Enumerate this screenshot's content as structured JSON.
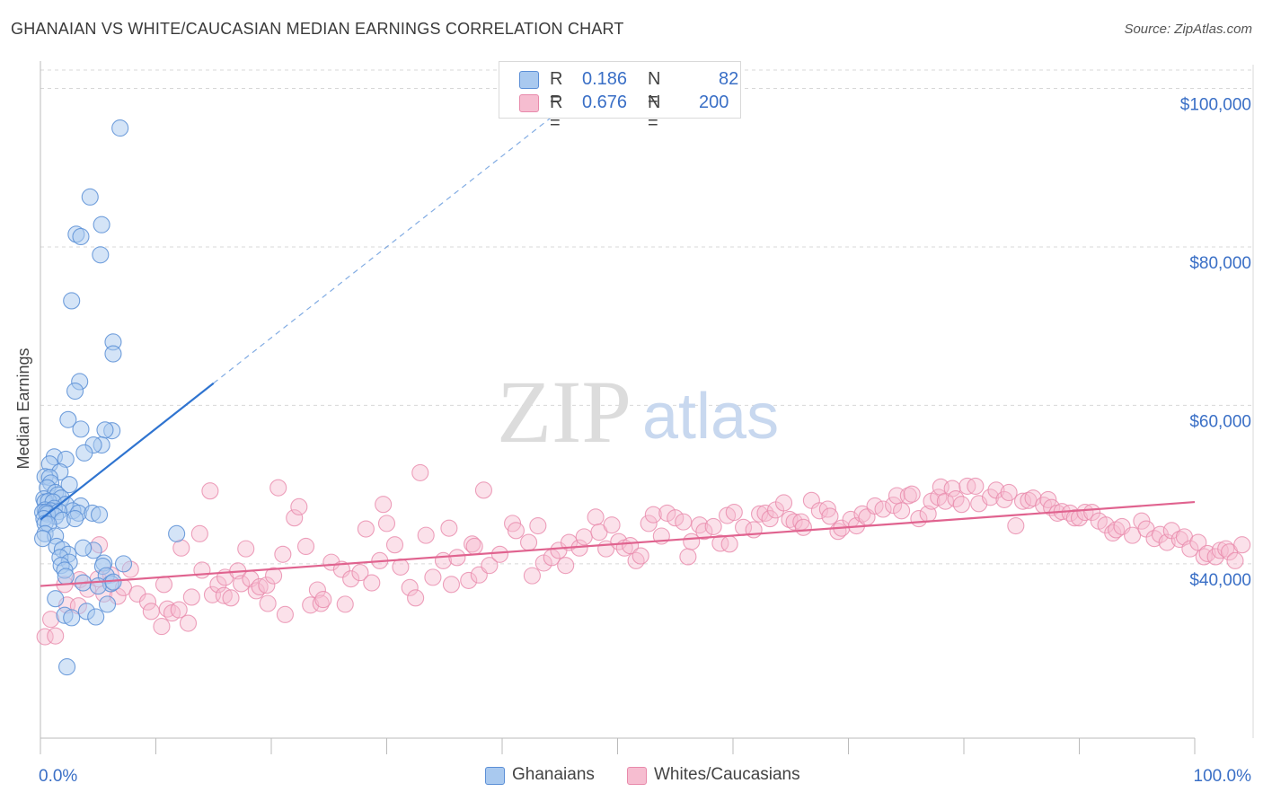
{
  "header": {
    "title": "GHANAIAN VS WHITE/CAUCASIAN MEDIAN EARNINGS CORRELATION CHART",
    "source": "Source: ZipAtlas.com"
  },
  "watermark": {
    "zip": "ZIP",
    "atlas": "atlas"
  },
  "legend": {
    "series1": {
      "r_label": "R =",
      "r_value": "0.186",
      "n_label": "N =",
      "n_value": "82"
    },
    "series2": {
      "r_label": "R =",
      "r_value": "0.676",
      "n_label": "N =",
      "n_value": "200"
    }
  },
  "colors": {
    "blue_fill": "#a9c9ef",
    "blue_stroke": "#5b8fd6",
    "blue_line": "#2f74d0",
    "pink_fill": "#f6bdd0",
    "pink_stroke": "#e88aab",
    "pink_line": "#e0638f",
    "tick_label": "#3a6fc6",
    "grid": "#d8d8d8"
  },
  "chart_data": {
    "type": "scatter",
    "title": "GHANAIAN VS WHITE/CAUCASIAN MEDIAN EARNINGS CORRELATION CHART",
    "xlabel": "",
    "ylabel": "Median Earnings",
    "xlim": [
      0,
      100
    ],
    "ylim": [
      18000,
      103000
    ],
    "x_tick_labels": [
      "0.0%",
      "100.0%"
    ],
    "y_ticks": [
      40000,
      60000,
      80000,
      100000
    ],
    "y_tick_labels": [
      "$40,000",
      "$60,000",
      "$80,000",
      "$100,000"
    ],
    "grid": true,
    "legend_position": "top-center",
    "series": [
      {
        "name": "Ghanaians",
        "r": 0.186,
        "n": 82,
        "trend": {
          "x0": 0,
          "y0": 45600,
          "x1": 15,
          "y1": 62800,
          "dashed_to_x": 45,
          "dashed_to_y": 97200
        },
        "points": [
          [
            6.9,
            95000
          ],
          [
            4.3,
            86300
          ],
          [
            5.3,
            82800
          ],
          [
            3.1,
            81600
          ],
          [
            3.5,
            81300
          ],
          [
            5.2,
            79000
          ],
          [
            2.7,
            73200
          ],
          [
            6.3,
            68000
          ],
          [
            6.3,
            66500
          ],
          [
            3.4,
            63000
          ],
          [
            3.0,
            61800
          ],
          [
            2.4,
            58200
          ],
          [
            3.5,
            57000
          ],
          [
            6.2,
            56800
          ],
          [
            5.6,
            56900
          ],
          [
            5.3,
            55000
          ],
          [
            4.6,
            55000
          ],
          [
            3.8,
            54000
          ],
          [
            1.2,
            53500
          ],
          [
            2.2,
            53200
          ],
          [
            0.8,
            52600
          ],
          [
            1.7,
            51600
          ],
          [
            0.4,
            51000
          ],
          [
            0.8,
            50900
          ],
          [
            0.9,
            50200
          ],
          [
            2.5,
            50000
          ],
          [
            0.6,
            49600
          ],
          [
            1.3,
            49000
          ],
          [
            1.5,
            48700
          ],
          [
            1.8,
            48300
          ],
          [
            0.3,
            48200
          ],
          [
            0.4,
            47800
          ],
          [
            0.7,
            47900
          ],
          [
            1.1,
            47800
          ],
          [
            2.2,
            47500
          ],
          [
            3.5,
            47300
          ],
          [
            1.2,
            47000
          ],
          [
            0.4,
            46800
          ],
          [
            0.9,
            46700
          ],
          [
            0.2,
            46500
          ],
          [
            0.5,
            46500
          ],
          [
            2.8,
            46700
          ],
          [
            1.6,
            46600
          ],
          [
            3.3,
            46400
          ],
          [
            0.6,
            46300
          ],
          [
            4.5,
            46400
          ],
          [
            5.1,
            46200
          ],
          [
            1.3,
            46000
          ],
          [
            0.3,
            45700
          ],
          [
            1.9,
            45500
          ],
          [
            3.0,
            45700
          ],
          [
            0.4,
            45100
          ],
          [
            0.7,
            45000
          ],
          [
            11.8,
            43800
          ],
          [
            0.4,
            43800
          ],
          [
            1.3,
            43500
          ],
          [
            1.4,
            42200
          ],
          [
            4.6,
            41700
          ],
          [
            1.9,
            41800
          ],
          [
            2.4,
            41200
          ],
          [
            3.7,
            42000
          ],
          [
            0.2,
            43200
          ],
          [
            1.7,
            40800
          ],
          [
            2.5,
            40200
          ],
          [
            1.8,
            39800
          ],
          [
            7.2,
            40000
          ],
          [
            2.1,
            39200
          ],
          [
            5.5,
            40100
          ],
          [
            5.4,
            39700
          ],
          [
            2.2,
            38400
          ],
          [
            5.7,
            38500
          ],
          [
            6.1,
            37500
          ],
          [
            3.7,
            37600
          ],
          [
            5.0,
            37200
          ],
          [
            6.3,
            37700
          ],
          [
            1.3,
            35600
          ],
          [
            5.8,
            34900
          ],
          [
            4.0,
            34000
          ],
          [
            2.1,
            33500
          ],
          [
            2.7,
            33200
          ],
          [
            4.8,
            33300
          ],
          [
            2.3,
            27000
          ]
        ]
      },
      {
        "name": "Whites/Caucasians",
        "r": 0.676,
        "n": 200,
        "trend": {
          "x0": 0,
          "y0": 37200,
          "x1": 100,
          "y1": 47800
        },
        "points": [
          [
            0.4,
            30800
          ],
          [
            1.3,
            30900
          ],
          [
            0.9,
            33000
          ],
          [
            2.3,
            34800
          ],
          [
            3.3,
            34700
          ],
          [
            2.1,
            37400
          ],
          [
            3.4,
            38000
          ],
          [
            4.1,
            36800
          ],
          [
            5.0,
            38100
          ],
          [
            5.5,
            36200
          ],
          [
            5.1,
            42400
          ],
          [
            6.1,
            38600
          ],
          [
            6.7,
            35900
          ],
          [
            7.2,
            37000
          ],
          [
            7.8,
            39300
          ],
          [
            8.4,
            36200
          ],
          [
            9.3,
            35200
          ],
          [
            9.6,
            34000
          ],
          [
            10.5,
            32100
          ],
          [
            10.7,
            37400
          ],
          [
            11.0,
            34300
          ],
          [
            11.4,
            33800
          ],
          [
            12.0,
            34200
          ],
          [
            12.2,
            42000
          ],
          [
            12.8,
            32500
          ],
          [
            13.1,
            35800
          ],
          [
            13.8,
            43800
          ],
          [
            14.0,
            39200
          ],
          [
            14.7,
            49200
          ],
          [
            14.9,
            36100
          ],
          [
            15.4,
            37400
          ],
          [
            15.9,
            36000
          ],
          [
            16.0,
            38300
          ],
          [
            16.5,
            35700
          ],
          [
            17.1,
            39100
          ],
          [
            17.4,
            37500
          ],
          [
            17.8,
            41900
          ],
          [
            18.2,
            38100
          ],
          [
            18.7,
            36600
          ],
          [
            19.0,
            37100
          ],
          [
            19.6,
            37300
          ],
          [
            19.7,
            35000
          ],
          [
            20.2,
            38500
          ],
          [
            20.6,
            49600
          ],
          [
            21.0,
            41200
          ],
          [
            21.2,
            33600
          ],
          [
            22.0,
            45800
          ],
          [
            22.4,
            47200
          ],
          [
            23.0,
            42200
          ],
          [
            23.4,
            34800
          ],
          [
            24.0,
            36700
          ],
          [
            24.3,
            35000
          ],
          [
            24.5,
            35500
          ],
          [
            25.2,
            40200
          ],
          [
            26.1,
            39300
          ],
          [
            26.4,
            34900
          ],
          [
            26.9,
            38100
          ],
          [
            27.7,
            38900
          ],
          [
            28.2,
            44400
          ],
          [
            28.7,
            37600
          ],
          [
            29.4,
            40400
          ],
          [
            29.7,
            47500
          ],
          [
            30.0,
            45100
          ],
          [
            30.7,
            42400
          ],
          [
            31.2,
            39600
          ],
          [
            32.0,
            37000
          ],
          [
            32.5,
            35700
          ],
          [
            32.9,
            51500
          ],
          [
            33.4,
            43600
          ],
          [
            34.0,
            38300
          ],
          [
            34.9,
            40400
          ],
          [
            35.4,
            44500
          ],
          [
            35.6,
            37400
          ],
          [
            36.1,
            40800
          ],
          [
            37.1,
            37900
          ],
          [
            37.4,
            42500
          ],
          [
            37.6,
            42200
          ],
          [
            38.0,
            38600
          ],
          [
            38.4,
            49300
          ],
          [
            38.9,
            39800
          ],
          [
            39.8,
            41200
          ],
          [
            40.9,
            45100
          ],
          [
            41.2,
            44200
          ],
          [
            42.3,
            42700
          ],
          [
            42.6,
            38500
          ],
          [
            43.1,
            44800
          ],
          [
            43.6,
            40100
          ],
          [
            44.3,
            40800
          ],
          [
            44.9,
            41700
          ],
          [
            45.5,
            39800
          ],
          [
            45.8,
            42700
          ],
          [
            46.7,
            42000
          ],
          [
            47.1,
            43400
          ],
          [
            48.1,
            45900
          ],
          [
            48.4,
            44000
          ],
          [
            49.0,
            41900
          ],
          [
            49.5,
            44900
          ],
          [
            50.1,
            42800
          ],
          [
            50.6,
            42000
          ],
          [
            51.1,
            42300
          ],
          [
            51.6,
            40400
          ],
          [
            52.0,
            41000
          ],
          [
            52.7,
            45100
          ],
          [
            53.1,
            46200
          ],
          [
            53.8,
            43500
          ],
          [
            54.3,
            46400
          ],
          [
            55.0,
            45800
          ],
          [
            55.7,
            45300
          ],
          [
            56.1,
            40900
          ],
          [
            56.4,
            42800
          ],
          [
            57.1,
            44900
          ],
          [
            57.5,
            44100
          ],
          [
            58.3,
            44700
          ],
          [
            58.9,
            42600
          ],
          [
            59.5,
            46100
          ],
          [
            59.7,
            42500
          ],
          [
            60.1,
            46500
          ],
          [
            60.9,
            44600
          ],
          [
            61.8,
            44300
          ],
          [
            62.3,
            46300
          ],
          [
            62.8,
            46400
          ],
          [
            63.2,
            45700
          ],
          [
            63.7,
            46800
          ],
          [
            64.4,
            47700
          ],
          [
            64.9,
            45600
          ],
          [
            65.3,
            45300
          ],
          [
            65.9,
            45300
          ],
          [
            66.1,
            44600
          ],
          [
            66.8,
            48000
          ],
          [
            67.5,
            46700
          ],
          [
            68.2,
            46900
          ],
          [
            68.4,
            46000
          ],
          [
            69.1,
            44100
          ],
          [
            69.4,
            44500
          ],
          [
            70.2,
            45600
          ],
          [
            70.7,
            44800
          ],
          [
            71.2,
            46300
          ],
          [
            71.6,
            45900
          ],
          [
            72.3,
            47300
          ],
          [
            73.0,
            46900
          ],
          [
            73.9,
            47400
          ],
          [
            74.2,
            48600
          ],
          [
            74.6,
            46700
          ],
          [
            75.2,
            48600
          ],
          [
            75.5,
            48800
          ],
          [
            76.1,
            45700
          ],
          [
            76.9,
            46300
          ],
          [
            77.2,
            47900
          ],
          [
            77.8,
            48400
          ],
          [
            78.0,
            49700
          ],
          [
            78.4,
            47900
          ],
          [
            79.0,
            49500
          ],
          [
            79.3,
            48200
          ],
          [
            79.8,
            47500
          ],
          [
            80.3,
            49800
          ],
          [
            81.0,
            49800
          ],
          [
            81.3,
            47600
          ],
          [
            82.3,
            48400
          ],
          [
            82.8,
            49300
          ],
          [
            83.5,
            48100
          ],
          [
            83.9,
            49000
          ],
          [
            84.5,
            44800
          ],
          [
            85.1,
            47900
          ],
          [
            85.6,
            48000
          ],
          [
            86.0,
            48300
          ],
          [
            86.9,
            47400
          ],
          [
            87.3,
            48100
          ],
          [
            87.6,
            47100
          ],
          [
            88.1,
            46400
          ],
          [
            88.5,
            46600
          ],
          [
            89.2,
            46400
          ],
          [
            89.6,
            45800
          ],
          [
            90.0,
            45800
          ],
          [
            90.5,
            46500
          ],
          [
            91.1,
            46500
          ],
          [
            91.7,
            45400
          ],
          [
            92.3,
            44900
          ],
          [
            92.9,
            43900
          ],
          [
            93.2,
            44300
          ],
          [
            93.7,
            44700
          ],
          [
            94.6,
            43600
          ],
          [
            95.4,
            45400
          ],
          [
            95.8,
            44400
          ],
          [
            96.5,
            43200
          ],
          [
            97.0,
            43700
          ],
          [
            97.6,
            42700
          ],
          [
            98.0,
            44200
          ],
          [
            98.7,
            43100
          ],
          [
            99.1,
            43400
          ],
          [
            99.6,
            41900
          ],
          [
            100.3,
            42700
          ],
          [
            100.8,
            40900
          ],
          [
            101.1,
            41300
          ],
          [
            101.8,
            40900
          ],
          [
            102.2,
            41700
          ],
          [
            102.7,
            41900
          ],
          [
            103.0,
            41500
          ],
          [
            103.5,
            40400
          ],
          [
            104.1,
            42400
          ]
        ]
      }
    ]
  },
  "bottom_legend": {
    "item1": "Ghanaians",
    "item2": "Whites/Caucasians"
  }
}
